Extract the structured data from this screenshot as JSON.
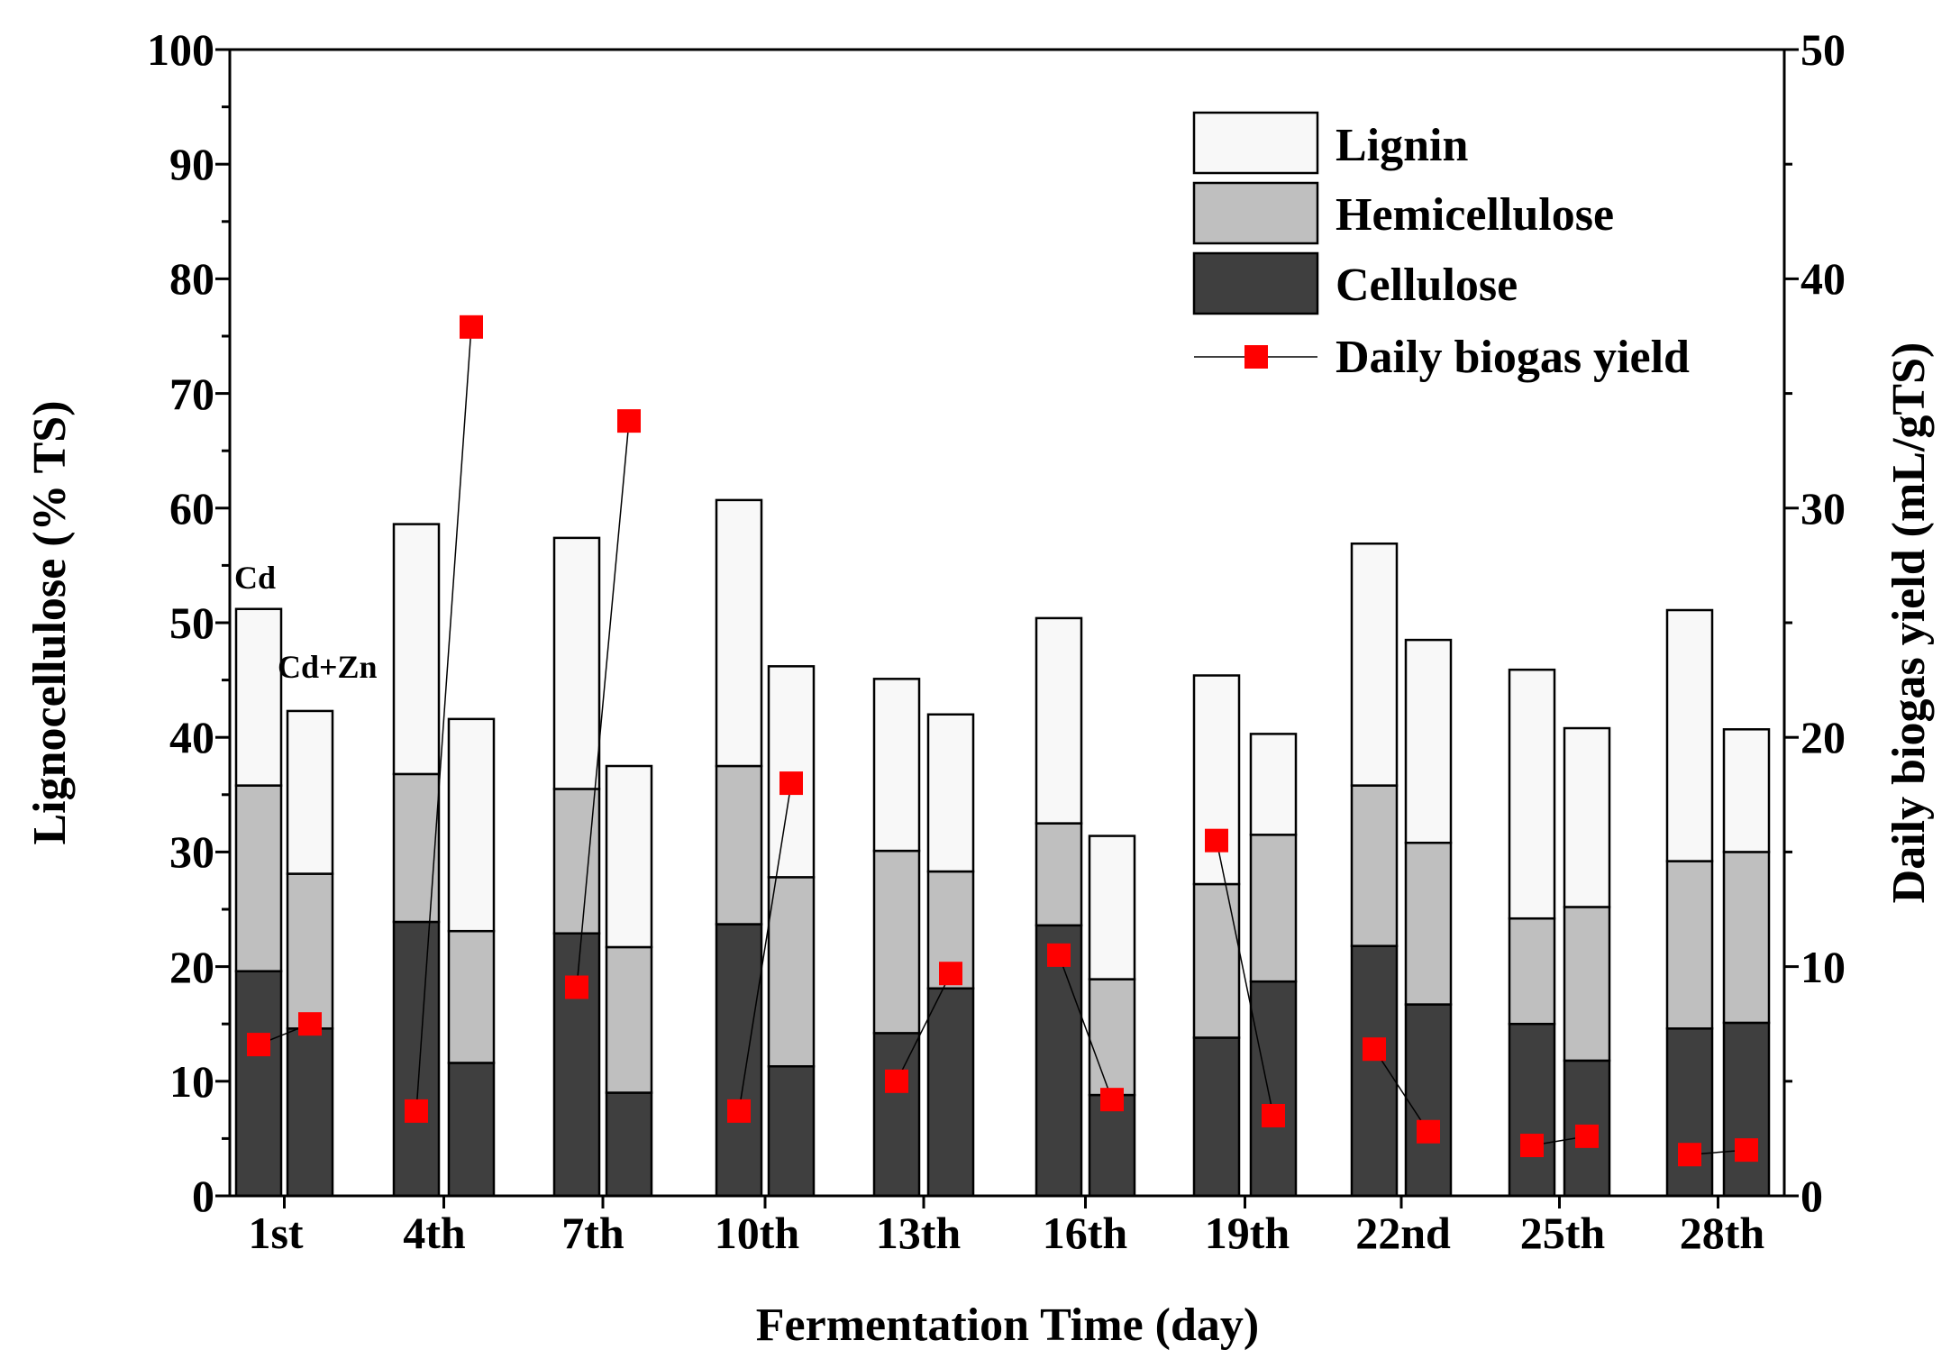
{
  "chart_data": {
    "type": "bar",
    "stacked": true,
    "grouped": true,
    "xlabel": "Fermentation Time (day)",
    "ylabel": "Lignocellulose (% TS)",
    "ylabel_right": "Daily biogas yield (mL/gTS)",
    "ylim": [
      0,
      100
    ],
    "ylim_right": [
      0,
      50
    ],
    "yticks": [
      "0",
      "10",
      "20",
      "30",
      "40",
      "50",
      "60",
      "70",
      "80",
      "90",
      "100"
    ],
    "yticks_right": [
      "0",
      "10",
      "20",
      "30",
      "40",
      "50"
    ],
    "categories": [
      "1st",
      "4th",
      "7th",
      "10th",
      "13th",
      "16th",
      "19th",
      "22nd",
      "25th",
      "28th"
    ],
    "groups": [
      "Cd",
      "Cd+Zn"
    ],
    "colors": {
      "cellulose": "#3f3f3f",
      "hemicellulose": "#bfbfbf",
      "lignin": "#f8f8f8",
      "marker": "#ff0000",
      "line": "#000000"
    },
    "series": [
      {
        "name": "Cellulose",
        "group": "Cd",
        "values": [
          19.6,
          23.9,
          22.9,
          23.7,
          14.2,
          23.6,
          13.8,
          21.8,
          15.0,
          14.6
        ]
      },
      {
        "name": "Hemicellulose",
        "group": "Cd",
        "values": [
          16.2,
          12.9,
          12.6,
          13.8,
          15.9,
          8.9,
          13.4,
          14.0,
          9.2,
          14.6
        ]
      },
      {
        "name": "Lignin",
        "group": "Cd",
        "values": [
          15.4,
          21.8,
          21.9,
          23.2,
          15.0,
          17.9,
          18.2,
          21.1,
          21.7,
          21.9
        ]
      },
      {
        "name": "Cellulose",
        "group": "Cd+Zn",
        "values": [
          14.6,
          11.6,
          9.0,
          11.3,
          18.1,
          8.8,
          18.7,
          16.7,
          11.8,
          15.1
        ]
      },
      {
        "name": "Hemicellulose",
        "group": "Cd+Zn",
        "values": [
          13.5,
          11.5,
          12.7,
          16.5,
          10.2,
          10.1,
          12.8,
          14.1,
          13.4,
          14.9
        ]
      },
      {
        "name": "Lignin",
        "group": "Cd+Zn",
        "values": [
          14.2,
          18.5,
          15.8,
          18.4,
          13.7,
          12.5,
          8.8,
          17.7,
          15.6,
          10.7
        ]
      },
      {
        "name": "Daily biogas yield",
        "axis": "right",
        "type": "line-marker",
        "pairs": [
          [
            6.6,
            7.5
          ],
          [
            3.7,
            37.9
          ],
          [
            9.1,
            33.8
          ],
          [
            3.7,
            18.0
          ],
          [
            5.0,
            9.7
          ],
          [
            10.5,
            4.2
          ],
          [
            15.5,
            3.5
          ],
          [
            6.4,
            2.8
          ],
          [
            2.2,
            2.6
          ],
          [
            1.8,
            2.0
          ]
        ]
      }
    ],
    "annotations": [
      "Cd",
      "Cd+Zn"
    ],
    "legend": {
      "position": "top-right",
      "entries": [
        "Lignin",
        "Hemicellulose",
        "Cellulose",
        "Daily biogas yield"
      ]
    }
  }
}
